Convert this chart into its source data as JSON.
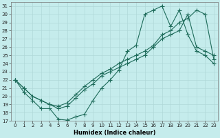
{
  "xlabel": "Humidex (Indice chaleur)",
  "bg_color": "#c5ecec",
  "grid_color": "#b0d8d8",
  "line_color": "#1e6b5a",
  "xlim": [
    -0.5,
    23.5
  ],
  "ylim": [
    17,
    31.5
  ],
  "xticks": [
    0,
    1,
    2,
    3,
    4,
    5,
    6,
    7,
    8,
    9,
    10,
    11,
    12,
    13,
    14,
    15,
    16,
    17,
    18,
    19,
    20,
    21,
    22,
    23
  ],
  "yticks": [
    17,
    18,
    19,
    20,
    21,
    22,
    23,
    24,
    25,
    26,
    27,
    28,
    29,
    30,
    31
  ],
  "line1_y": [
    22,
    20.5,
    19.5,
    18.5,
    18.5,
    17.2,
    17.1,
    17.5,
    17.8,
    19.5,
    21.0,
    22.0,
    23.2,
    25.5,
    26.2,
    30.0,
    30.5,
    31.0,
    28.5,
    30.5,
    27.5,
    25.5,
    25.0,
    24.0
  ],
  "line2_y": [
    22.0,
    21.0,
    20.0,
    19.5,
    19.0,
    18.5,
    18.8,
    19.8,
    20.8,
    21.5,
    22.5,
    23.0,
    23.5,
    24.0,
    24.5,
    25.0,
    26.0,
    27.0,
    27.5,
    28.0,
    30.0,
    26.0,
    25.5,
    25.0
  ],
  "line3_y": [
    22.0,
    21.0,
    20.0,
    19.5,
    19.0,
    18.8,
    19.2,
    20.2,
    21.2,
    22.0,
    22.8,
    23.3,
    24.0,
    24.5,
    25.0,
    25.5,
    26.2,
    27.5,
    28.0,
    29.0,
    29.5,
    30.5,
    30.0,
    24.5
  ],
  "xlabel_fontsize": 6,
  "tick_fontsize": 5,
  "marker_size": 2.0,
  "linewidth": 0.8
}
